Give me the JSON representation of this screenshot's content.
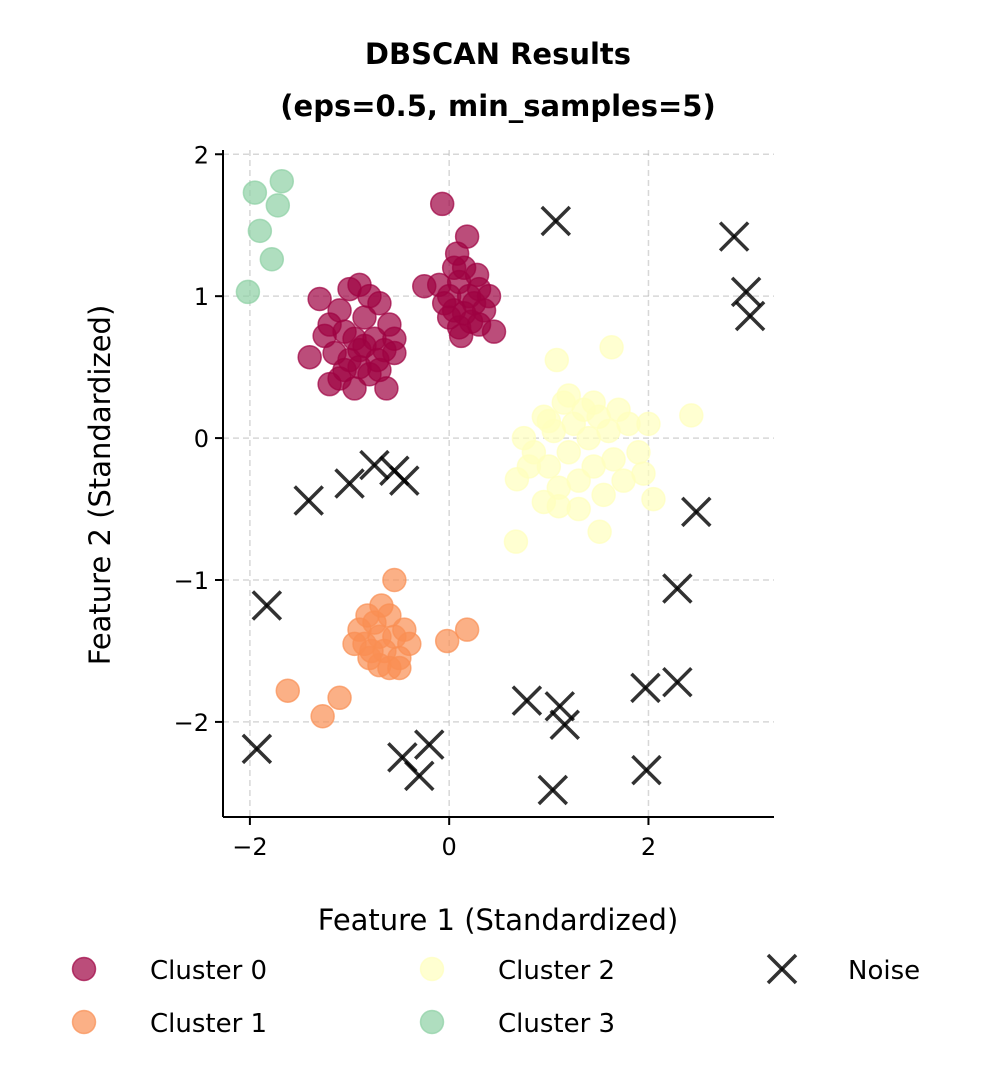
{
  "chart_data": {
    "type": "scatter",
    "title": [
      "DBSCAN Results",
      "(eps=0.5, min_samples=5)"
    ],
    "xlabel": "Feature 1 (Standardized)",
    "ylabel": "Feature 2 (Standardized)",
    "xlim": [
      -2.27,
      3.26
    ],
    "ylim": [
      -2.67,
      2.03
    ],
    "xticks": [
      -2,
      0,
      2
    ],
    "yticks": [
      -2,
      -1,
      0,
      1,
      2
    ],
    "xtick_labels": [
      "−2",
      "0",
      "2"
    ],
    "ytick_labels": [
      "−2",
      "−1",
      "0",
      "1",
      "2"
    ],
    "grid": true,
    "legend_placement": "bottom",
    "series": [
      {
        "name": "Cluster 0",
        "color": "#9e0142",
        "marker": "circle",
        "points": [
          [
            -1.1,
            0.9
          ],
          [
            -1.0,
            1.05
          ],
          [
            -0.9,
            1.08
          ],
          [
            -0.8,
            1.0
          ],
          [
            -0.7,
            0.95
          ],
          [
            -1.2,
            0.8
          ],
          [
            -1.3,
            0.98
          ],
          [
            -1.05,
            0.75
          ],
          [
            -0.95,
            0.7
          ],
          [
            -0.85,
            0.65
          ],
          [
            -0.75,
            0.7
          ],
          [
            -0.65,
            0.62
          ],
          [
            -0.6,
            0.8
          ],
          [
            -0.55,
            0.7
          ],
          [
            -1.15,
            0.6
          ],
          [
            -1.0,
            0.55
          ],
          [
            -0.9,
            0.5
          ],
          [
            -0.8,
            0.45
          ],
          [
            -1.1,
            0.42
          ],
          [
            -1.2,
            0.38
          ],
          [
            -0.7,
            0.48
          ],
          [
            -1.4,
            0.57
          ],
          [
            -0.63,
            0.35
          ],
          [
            -0.95,
            0.35
          ],
          [
            -1.25,
            0.72
          ],
          [
            -0.85,
            0.85
          ],
          [
            -0.72,
            0.55
          ],
          [
            -1.05,
            0.48
          ],
          [
            -0.9,
            0.62
          ],
          [
            -0.55,
            0.6
          ],
          [
            -0.1,
            1.08
          ],
          [
            0.0,
            1.0
          ],
          [
            0.05,
            0.9
          ],
          [
            0.1,
            1.1
          ],
          [
            0.15,
            1.2
          ],
          [
            0.2,
            1.0
          ],
          [
            0.25,
            0.95
          ],
          [
            0.3,
            1.05
          ],
          [
            0.35,
            0.9
          ],
          [
            0.22,
            0.82
          ],
          [
            0.1,
            0.78
          ],
          [
            0.0,
            0.85
          ],
          [
            -0.05,
            0.95
          ],
          [
            0.15,
            0.88
          ],
          [
            0.28,
            1.15
          ],
          [
            0.4,
            1.0
          ],
          [
            0.45,
            0.75
          ],
          [
            0.08,
            1.3
          ],
          [
            0.18,
            1.42
          ],
          [
            -0.07,
            1.65
          ],
          [
            -0.25,
            1.07
          ],
          [
            0.12,
            0.72
          ],
          [
            0.3,
            0.8
          ],
          [
            0.05,
            1.2
          ]
        ]
      },
      {
        "name": "Cluster 1",
        "color": "#f98e52",
        "marker": "circle",
        "points": [
          [
            -0.9,
            -1.35
          ],
          [
            -0.85,
            -1.45
          ],
          [
            -0.8,
            -1.55
          ],
          [
            -0.75,
            -1.3
          ],
          [
            -0.7,
            -1.4
          ],
          [
            -0.65,
            -1.5
          ],
          [
            -0.6,
            -1.25
          ],
          [
            -0.55,
            -1.4
          ],
          [
            -0.5,
            -1.55
          ],
          [
            -0.45,
            -1.35
          ],
          [
            -0.4,
            -1.45
          ],
          [
            -0.7,
            -1.6
          ],
          [
            -0.6,
            -1.62
          ],
          [
            -0.82,
            -1.25
          ],
          [
            -0.68,
            -1.18
          ],
          [
            -0.5,
            -1.62
          ],
          [
            -0.95,
            -1.45
          ],
          [
            -0.55,
            -1.0
          ],
          [
            -1.62,
            -1.78
          ],
          [
            -1.27,
            -1.96
          ],
          [
            -1.1,
            -1.83
          ],
          [
            0.18,
            -1.35
          ],
          [
            -0.02,
            -1.43
          ],
          [
            -0.78,
            -1.5
          ]
        ]
      },
      {
        "name": "Cluster 2",
        "color": "#ffffbe",
        "marker": "circle",
        "points": [
          [
            0.85,
            -0.1
          ],
          [
            0.95,
            0.15
          ],
          [
            1.0,
            -0.2
          ],
          [
            1.05,
            0.05
          ],
          [
            1.1,
            -0.35
          ],
          [
            1.15,
            0.25
          ],
          [
            1.2,
            -0.1
          ],
          [
            1.25,
            0.1
          ],
          [
            1.3,
            -0.3
          ],
          [
            1.35,
            0.2
          ],
          [
            1.4,
            0.0
          ],
          [
            1.45,
            -0.2
          ],
          [
            1.5,
            0.15
          ],
          [
            1.55,
            -0.4
          ],
          [
            1.6,
            0.05
          ],
          [
            1.65,
            -0.15
          ],
          [
            1.7,
            0.2
          ],
          [
            1.75,
            -0.3
          ],
          [
            1.8,
            0.1
          ],
          [
            1.9,
            -0.1
          ],
          [
            1.95,
            -0.25
          ],
          [
            2.0,
            0.1
          ],
          [
            1.3,
            -0.5
          ],
          [
            1.1,
            -0.48
          ],
          [
            0.95,
            -0.45
          ],
          [
            0.8,
            -0.2
          ],
          [
            1.2,
            0.3
          ],
          [
            1.45,
            0.25
          ],
          [
            1.0,
            0.12
          ],
          [
            1.08,
            0.55
          ],
          [
            1.63,
            0.64
          ],
          [
            2.43,
            0.16
          ],
          [
            0.68,
            -0.29
          ],
          [
            0.67,
            -0.73
          ],
          [
            1.51,
            -0.66
          ],
          [
            2.05,
            -0.43
          ],
          [
            0.75,
            0.0
          ]
        ]
      },
      {
        "name": "Cluster 3",
        "color": "#8dd0a4",
        "marker": "circle",
        "points": [
          [
            -1.95,
            1.73
          ],
          [
            -1.68,
            1.81
          ],
          [
            -1.72,
            1.64
          ],
          [
            -1.9,
            1.46
          ],
          [
            -1.78,
            1.26
          ],
          [
            -2.02,
            1.03
          ]
        ]
      },
      {
        "name": "Noise",
        "color": "#000000",
        "marker": "x",
        "points": [
          [
            1.07,
            1.53
          ],
          [
            2.86,
            1.42
          ],
          [
            2.98,
            1.03
          ],
          [
            3.02,
            0.86
          ],
          [
            -0.75,
            -0.19
          ],
          [
            -0.55,
            -0.23
          ],
          [
            -0.45,
            -0.3
          ],
          [
            -1.0,
            -0.32
          ],
          [
            -1.41,
            -0.44
          ],
          [
            2.48,
            -0.52
          ],
          [
            2.29,
            -1.06
          ],
          [
            -1.83,
            -1.18
          ],
          [
            0.78,
            -1.85
          ],
          [
            1.11,
            -1.89
          ],
          [
            1.16,
            -2.02
          ],
          [
            1.97,
            -1.76
          ],
          [
            2.29,
            -1.72
          ],
          [
            -1.93,
            -2.19
          ],
          [
            -0.47,
            -2.25
          ],
          [
            -0.2,
            -2.16
          ],
          [
            -0.3,
            -2.38
          ],
          [
            1.04,
            -2.48
          ],
          [
            1.98,
            -2.34
          ]
        ]
      }
    ]
  }
}
